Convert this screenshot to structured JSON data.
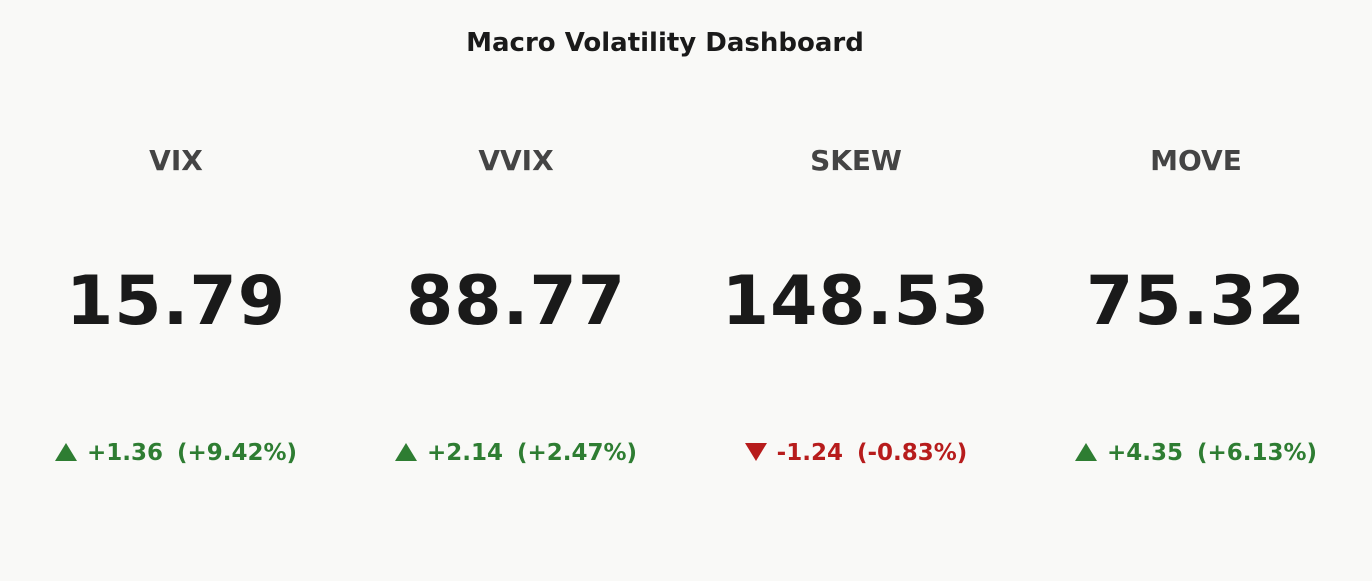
{
  "title": "Macro Volatility Dashboard",
  "up_color": "#2e7d32",
  "down_color": "#b71c1c",
  "tiles": [
    {
      "label": "VIX",
      "value": "15.79",
      "direction": "up",
      "change": "+1.36",
      "percent": "(+9.42%)"
    },
    {
      "label": "VVIX",
      "value": "88.77",
      "direction": "up",
      "change": "+2.14",
      "percent": "(+2.47%)"
    },
    {
      "label": "SKEW",
      "value": "148.53",
      "direction": "down",
      "change": "-1.24",
      "percent": "(-0.83%)"
    },
    {
      "label": "MOVE",
      "value": "75.32",
      "direction": "up",
      "change": "+4.35",
      "percent": "(+6.13%)"
    }
  ]
}
